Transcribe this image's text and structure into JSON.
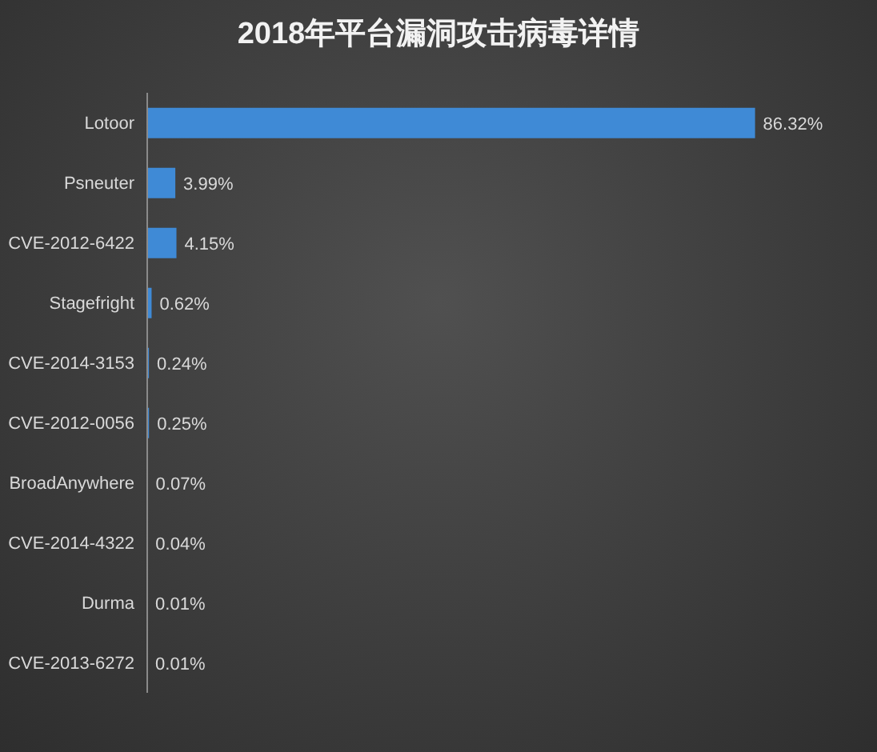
{
  "chart_data": {
    "type": "bar",
    "orientation": "horizontal",
    "title": "2018年平台漏洞攻击病毒详情",
    "categories": [
      "Lotoor",
      "Psneuter",
      "CVE-2012-6422",
      "Stagefright",
      "CVE-2014-3153",
      "CVE-2012-0056",
      "BroadAnywhere",
      "CVE-2014-4322",
      "Durma",
      "CVE-2013-6272"
    ],
    "values": [
      86.32,
      3.99,
      4.15,
      0.62,
      0.24,
      0.25,
      0.07,
      0.04,
      0.01,
      0.01
    ],
    "value_labels": [
      "86.32%",
      "3.99%",
      "4.15%",
      "0.62%",
      "0.24%",
      "0.25%",
      "0.07%",
      "0.04%",
      "0.01%",
      "0.01%"
    ],
    "color": "#3f8ad6",
    "tick_labels": "y"
  }
}
